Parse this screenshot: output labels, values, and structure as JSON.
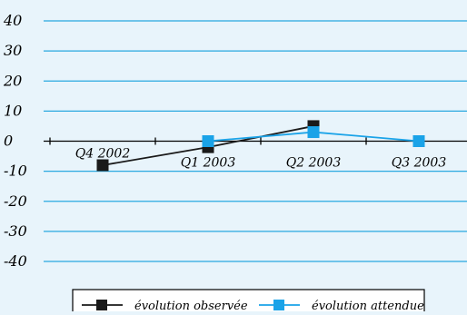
{
  "colors": {
    "background": "#e8f4fb",
    "gridline": "#29a8e0",
    "axis": "#000000",
    "series_observed": "#1a1a1a",
    "series_expected": "#1aa3e8"
  },
  "chart_data": {
    "type": "line",
    "title": "",
    "xlabel": "",
    "ylabel": "",
    "categories": [
      "Q4 2002",
      "Q1 2003",
      "Q2 2003",
      "Q3 2003"
    ],
    "ylim": [
      -40,
      40
    ],
    "yticks": [
      "40",
      "30",
      "20",
      "10",
      "0",
      "-10",
      "-20",
      "-30",
      "-40"
    ],
    "grid": true,
    "legend_position": "bottom",
    "series": [
      {
        "name": "évolution observée",
        "values": [
          -8,
          -2,
          5,
          null
        ],
        "color": "#1a1a1a",
        "marker": "square"
      },
      {
        "name": "évolution attendue",
        "values": [
          null,
          0,
          3,
          0
        ],
        "color": "#1aa3e8",
        "marker": "square"
      }
    ]
  }
}
